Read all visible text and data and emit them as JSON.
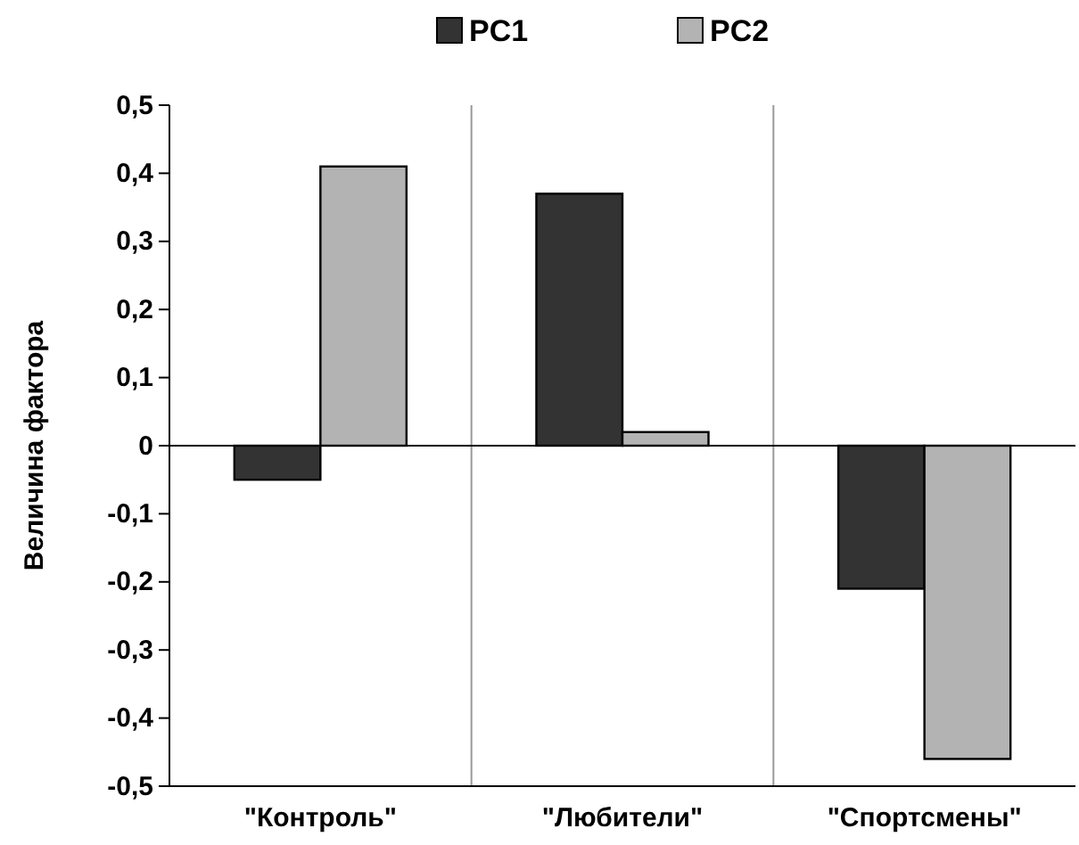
{
  "chart_data": {
    "type": "bar",
    "ylabel": "Величина фактора",
    "categories": [
      "\"Контроль\"",
      "\"Любители\"",
      "\"Спортсмены\""
    ],
    "series": [
      {
        "name": "PC1",
        "color": "#333333",
        "values": [
          -0.05,
          0.37,
          -0.21
        ]
      },
      {
        "name": "PC2",
        "color": "#b3b3b3",
        "values": [
          0.41,
          0.02,
          -0.46
        ]
      }
    ],
    "ylim": [
      -0.5,
      0.5
    ],
    "yticks": [
      {
        "value": -0.5,
        "label": "-0,5"
      },
      {
        "value": -0.4,
        "label": "-0,4"
      },
      {
        "value": -0.3,
        "label": "-0,3"
      },
      {
        "value": -0.2,
        "label": "-0,2"
      },
      {
        "value": -0.1,
        "label": "-0,1"
      },
      0,
      {
        "value": 0.1,
        "label": "0,1"
      },
      {
        "value": 0.2,
        "label": "0,2"
      },
      {
        "value": 0.3,
        "label": "0,3"
      },
      {
        "value": 0.4,
        "label": "0,4"
      },
      {
        "value": 0.5,
        "label": "0,5"
      }
    ],
    "grid": "x",
    "legend": "top"
  }
}
